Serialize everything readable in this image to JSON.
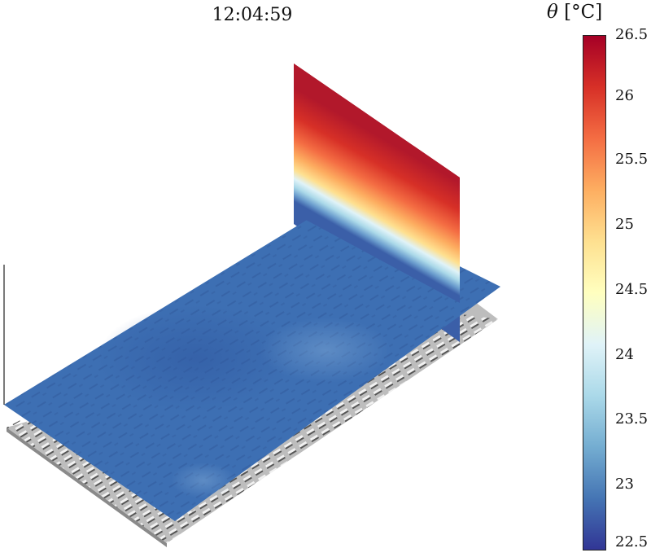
{
  "timestamp": "12:04:59",
  "colorbar": {
    "symbol": "θ",
    "unit": "[°C]",
    "min": 22.5,
    "max": 26.5,
    "tick_labels": [
      "26.5",
      "26",
      "25.5",
      "25",
      "24.5",
      "24",
      "23.5",
      "23",
      "22.5"
    ],
    "colormap": [
      "#313695",
      "#4575b4",
      "#74add1",
      "#abd9e9",
      "#e0f3f8",
      "#ffffbf",
      "#fee090",
      "#fdae61",
      "#f46d43",
      "#d73027",
      "#a50026"
    ]
  },
  "scene": {
    "content": "3D view of an urban terrain with a horizontal temperature slice and a vertical temperature slice",
    "horizontal_slice_color": "#3d6fb3",
    "ground_color": "#bdbdbd",
    "vertical_slice_top_color": "#b2182b"
  }
}
